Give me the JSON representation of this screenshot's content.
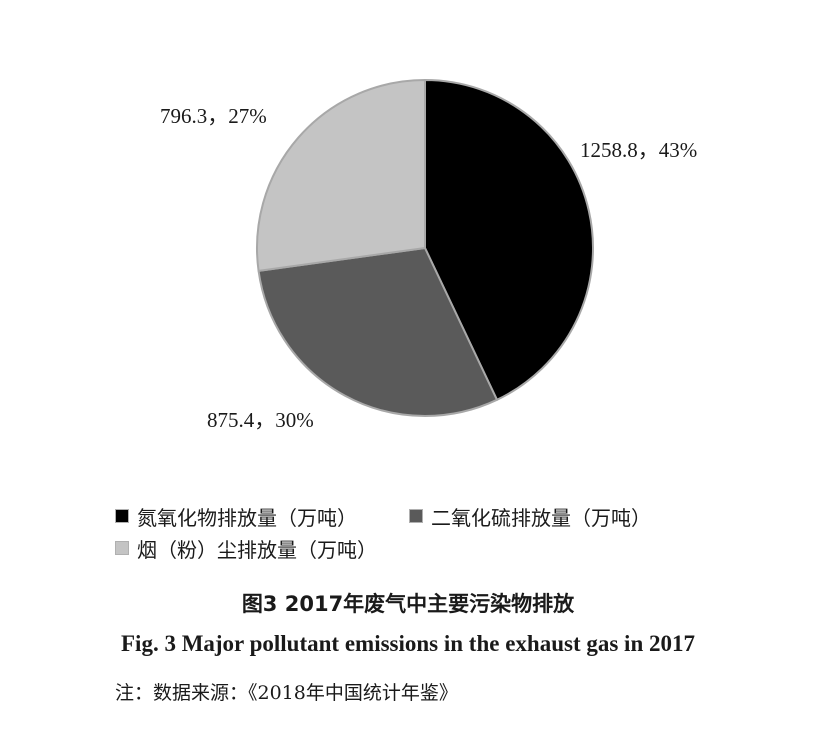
{
  "chart_data": {
    "type": "pie",
    "unit": "万吨",
    "series": [
      {
        "name": "氮氧化物排放量（万吨）",
        "value": 1258.8,
        "percent": 43,
        "label": "1258.8，43%",
        "color": "#000000"
      },
      {
        "name": "二氧化硫排放量（万吨）",
        "value": 875.4,
        "percent": 30,
        "label": "875.4，30%",
        "color": "#5a5a5a"
      },
      {
        "name": "烟（粉）尘排放量（万吨）",
        "value": 796.3,
        "percent": 27,
        "label": "796.3，27%",
        "color": "#c4c4c4"
      }
    ],
    "start_angle_deg": 0,
    "direction": "clockwise",
    "slice_border_color": "#a8a8a8"
  },
  "caption": {
    "cn": "图3   2017年废气中主要污染物排放",
    "en": "Fig. 3   Major pollutant emissions in the exhaust gas in 2017"
  },
  "note": "注：数据来源：《2018年中国统计年鉴》"
}
